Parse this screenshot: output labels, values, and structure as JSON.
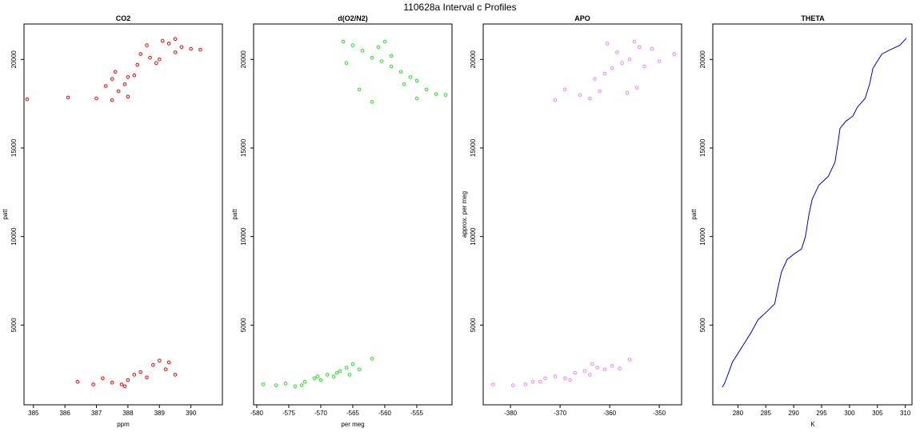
{
  "figure": {
    "title": "110628a   Interval c Profiles"
  },
  "chart_data": [
    {
      "type": "scatter",
      "title": "CO2",
      "xlabel": "ppm",
      "ylabel": "patt",
      "xlim": [
        384.7,
        391.0
      ],
      "ylim": [
        500,
        22000
      ],
      "xticks": [
        385,
        386,
        387,
        388,
        389,
        390
      ],
      "yticks": [
        5000,
        10000,
        15000,
        20000
      ],
      "series": [
        {
          "color": "#ee0000",
          "marker": "open-circle",
          "points": [
            [
              384.8,
              17750
            ],
            [
              386.1,
              17850
            ],
            [
              387.0,
              17800
            ],
            [
              387.3,
              18500
            ],
            [
              387.5,
              18900
            ],
            [
              387.6,
              19300
            ],
            [
              387.7,
              18200
            ],
            [
              387.9,
              18600
            ],
            [
              388.0,
              19000
            ],
            [
              388.2,
              19100
            ],
            [
              388.4,
              20300
            ],
            [
              388.6,
              20800
            ],
            [
              388.7,
              20100
            ],
            [
              388.9,
              19800
            ],
            [
              389.0,
              20000
            ],
            [
              389.3,
              20900
            ],
            [
              389.5,
              20400
            ],
            [
              389.7,
              20700
            ],
            [
              390.0,
              20600
            ],
            [
              390.3,
              20550
            ],
            [
              387.5,
              17700
            ],
            [
              388.0,
              17900
            ],
            [
              388.3,
              19700
            ],
            [
              389.1,
              21050
            ],
            [
              389.5,
              21150
            ],
            [
              386.4,
              1800
            ],
            [
              386.9,
              1650
            ],
            [
              387.2,
              2000
            ],
            [
              387.5,
              1750
            ],
            [
              387.8,
              1650
            ],
            [
              388.0,
              1900
            ],
            [
              388.2,
              2200
            ],
            [
              388.4,
              2350
            ],
            [
              388.6,
              2050
            ],
            [
              388.8,
              2750
            ],
            [
              389.0,
              3000
            ],
            [
              389.2,
              2500
            ],
            [
              389.3,
              2900
            ],
            [
              389.5,
              2200
            ],
            [
              387.9,
              1550
            ]
          ]
        }
      ]
    },
    {
      "type": "scatter",
      "title": "d(O2/N2)",
      "xlabel": "per meg",
      "ylabel": "patt",
      "xlim": [
        -580.5,
        -549.5
      ],
      "ylim": [
        500,
        22000
      ],
      "xticks": [
        -580,
        -575,
        -570,
        -565,
        -560,
        -555
      ],
      "yticks": [
        5000,
        10000,
        15000,
        20000
      ],
      "series": [
        {
          "color": "#22dd22",
          "marker": "open-circle",
          "points": [
            [
              -566.5,
              21000
            ],
            [
              -565.0,
              20800
            ],
            [
              -563.5,
              20500
            ],
            [
              -562.0,
              20100
            ],
            [
              -560.5,
              19900
            ],
            [
              -559.0,
              19600
            ],
            [
              -557.5,
              19300
            ],
            [
              -556.0,
              19000
            ],
            [
              -555.0,
              18800
            ],
            [
              -553.5,
              18300
            ],
            [
              -552.0,
              18050
            ],
            [
              -550.5,
              18000
            ],
            [
              -555.0,
              17800
            ],
            [
              -557.0,
              18600
            ],
            [
              -559.0,
              20200
            ],
            [
              -561.0,
              20700
            ],
            [
              -564.0,
              18300
            ],
            [
              -562.0,
              17600
            ],
            [
              -566.0,
              19800
            ],
            [
              -560.0,
              21000
            ],
            [
              -579.0,
              1650
            ],
            [
              -577.0,
              1600
            ],
            [
              -575.5,
              1700
            ],
            [
              -574.0,
              1550
            ],
            [
              -572.5,
              1800
            ],
            [
              -571.0,
              2000
            ],
            [
              -570.0,
              1900
            ],
            [
              -569.0,
              2200
            ],
            [
              -568.0,
              2100
            ],
            [
              -567.0,
              2400
            ],
            [
              -566.0,
              2600
            ],
            [
              -565.0,
              2800
            ],
            [
              -564.0,
              2500
            ],
            [
              -562.0,
              3100
            ],
            [
              -573.0,
              1600
            ],
            [
              -570.5,
              2100
            ],
            [
              -567.5,
              2300
            ],
            [
              -565.5,
              2200
            ]
          ]
        }
      ]
    },
    {
      "type": "scatter",
      "title": "APO",
      "xlabel": "",
      "ylabel": "approx. per meg",
      "xlim": [
        -385.5,
        -345.5
      ],
      "ylim": [
        500,
        22000
      ],
      "xticks": [
        -380,
        -370,
        -360,
        -350
      ],
      "yticks": [
        5000,
        10000,
        15000,
        20000
      ],
      "series": [
        {
          "color": "#ee82ee",
          "marker": "open-circle",
          "points": [
            [
              -371.0,
              17700
            ],
            [
              -369.0,
              18300
            ],
            [
              -366.0,
              18000
            ],
            [
              -364.0,
              17800
            ],
            [
              -362.0,
              18200
            ],
            [
              -361.0,
              19200
            ],
            [
              -359.5,
              19500
            ],
            [
              -358.5,
              20400
            ],
            [
              -357.5,
              19800
            ],
            [
              -356.0,
              20000
            ],
            [
              -355.0,
              21000
            ],
            [
              -354.0,
              20700
            ],
            [
              -353.0,
              19600
            ],
            [
              -351.5,
              20600
            ],
            [
              -350.0,
              19900
            ],
            [
              -347.0,
              20300
            ],
            [
              -360.5,
              20900
            ],
            [
              -356.5,
              18100
            ],
            [
              -354.5,
              18400
            ],
            [
              -363.0,
              18900
            ],
            [
              -383.5,
              1650
            ],
            [
              -379.5,
              1600
            ],
            [
              -377.0,
              1650
            ],
            [
              -375.5,
              1800
            ],
            [
              -373.0,
              2000
            ],
            [
              -371.0,
              2100
            ],
            [
              -369.0,
              2000
            ],
            [
              -367.0,
              2300
            ],
            [
              -365.0,
              2400
            ],
            [
              -364.0,
              2200
            ],
            [
              -362.5,
              2600
            ],
            [
              -361.0,
              2500
            ],
            [
              -359.5,
              2700
            ],
            [
              -358.0,
              2550
            ],
            [
              -356.0,
              3050
            ],
            [
              -374.0,
              1800
            ],
            [
              -368.0,
              1900
            ],
            [
              -363.5,
              2800
            ]
          ]
        }
      ]
    },
    {
      "type": "line",
      "title": "THETA",
      "xlabel": "K",
      "ylabel": "patt",
      "xlim": [
        275.5,
        311.2
      ],
      "ylim": [
        500,
        22000
      ],
      "xticks": [
        280,
        285,
        290,
        295,
        300,
        305,
        310
      ],
      "yticks": [
        5000,
        10000,
        15000,
        20000
      ],
      "series": [
        {
          "color": "#0000cc",
          "points": [
            [
              277.2,
              1500
            ],
            [
              277.6,
              1700
            ],
            [
              278.2,
              2200
            ],
            [
              279.0,
              2900
            ],
            [
              280.0,
              3400
            ],
            [
              281.2,
              4000
            ],
            [
              282.4,
              4600
            ],
            [
              283.6,
              5300
            ],
            [
              285.3,
              5800
            ],
            [
              286.6,
              6200
            ],
            [
              287.1,
              7000
            ],
            [
              287.8,
              8000
            ],
            [
              288.8,
              8700
            ],
            [
              290.0,
              9000
            ],
            [
              291.4,
              9300
            ],
            [
              292.1,
              10000
            ],
            [
              292.7,
              11200
            ],
            [
              293.3,
              12100
            ],
            [
              294.5,
              12900
            ],
            [
              296.2,
              13400
            ],
            [
              297.4,
              14200
            ],
            [
              297.9,
              15200
            ],
            [
              298.3,
              16100
            ],
            [
              299.3,
              16500
            ],
            [
              300.6,
              16800
            ],
            [
              301.4,
              17300
            ],
            [
              302.8,
              17800
            ],
            [
              303.6,
              18600
            ],
            [
              304.2,
              19500
            ],
            [
              305.8,
              20300
            ],
            [
              307.0,
              20500
            ],
            [
              309.0,
              20800
            ],
            [
              310.2,
              21200
            ]
          ]
        }
      ]
    }
  ]
}
